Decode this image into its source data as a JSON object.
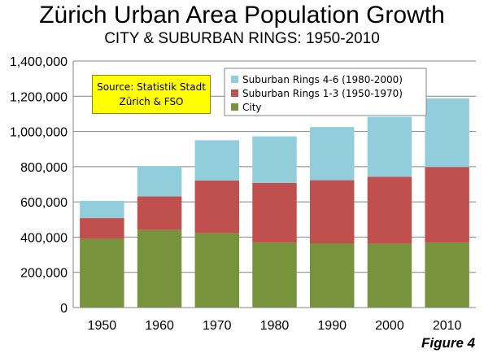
{
  "chart_data": {
    "type": "bar",
    "stacked": true,
    "title": "Zürich Urban Area Population Growth",
    "subtitle": "CITY & SUBURBAN RINGS: 1950-2010",
    "categories": [
      "1950",
      "1960",
      "1970",
      "1980",
      "1990",
      "2000",
      "2010"
    ],
    "series": [
      {
        "name": "City",
        "color": "#77933c",
        "values": [
          390000,
          440000,
          422000,
          369000,
          365000,
          363000,
          368000
        ]
      },
      {
        "name": "Suburban Rings 1-3 (1950-1970)",
        "color": "#c0504d",
        "values": [
          118000,
          191000,
          300000,
          338000,
          358000,
          380000,
          430000
        ]
      },
      {
        "name": "Suburban Rings 4-6 (1980-2000)",
        "color": "#92cddc",
        "values": [
          98000,
          172000,
          228000,
          265000,
          302000,
          340000,
          390000
        ]
      }
    ],
    "legend_order": [
      "Suburban Rings 4-6 (1980-2000)",
      "Suburban Rings 1-3 (1950-1970)",
      "City"
    ],
    "ylim": [
      0,
      1400000
    ],
    "yticks": [
      0,
      200000,
      400000,
      600000,
      800000,
      1000000,
      1200000,
      1400000
    ],
    "ytick_labels": [
      "0",
      "200,000",
      "400,000",
      "600,000",
      "800,000",
      "1,000,000",
      "1,200,000",
      "1,400,000"
    ],
    "grid": true,
    "legend_position": "top",
    "annotation": [
      "Source: Statistik Stadt",
      "Zürich & FSO"
    ],
    "figure_label": "Figure 4"
  }
}
